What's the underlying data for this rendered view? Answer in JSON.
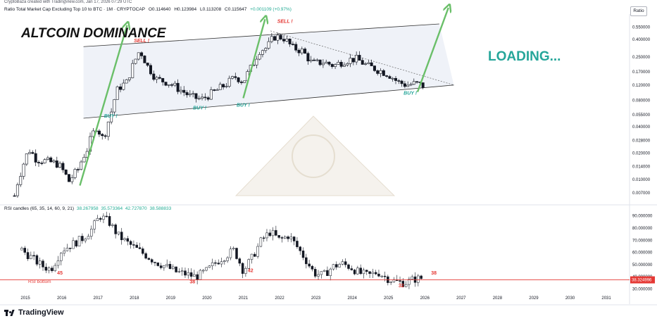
{
  "header": {
    "published_line": "CryptoBaza created with TradingView.com, Jan 17, 2026 07:29 UTC",
    "legend": {
      "title": "Ratio Total Market Cap Excluding Top 10 to BTC · 1M · CRYPTOCAP",
      "open": "O0.114640",
      "high": "H0.123984",
      "low": "L0.113208",
      "close": "C0.115647",
      "change": "+0.001109 (+0.97%)"
    },
    "scale_button": "Ratio"
  },
  "colors": {
    "up": "#ffffff",
    "down": "#131722",
    "arrow": "#6abf69",
    "channel_fill": "#e8ecf5",
    "annotation_red": "#e53935",
    "annotation_teal": "#26a69a",
    "rsi_bottom": "#e53935"
  },
  "chart_data": [
    {
      "type": "candlestick",
      "title": "ALTCOIN DOMINANCE",
      "ylabel": "",
      "y_scale": "log",
      "ylim": [
        0.0055,
        0.75
      ],
      "y_ticks": [
        "0.550000",
        "0.400000",
        "0.250000",
        "0.170000",
        "0.120000",
        "0.080000",
        "0.055000",
        "0.040000",
        "0.028000",
        "0.020000",
        "0.014000",
        "0.010000",
        "0.007000"
      ],
      "x_ticks": [
        "2015",
        "2016",
        "2017",
        "2018",
        "2019",
        "2020",
        "2021",
        "2022",
        "2023",
        "2024",
        "2025",
        "2026",
        "2027",
        "2028",
        "2029",
        "2030",
        "2031"
      ],
      "x_range_years": [
        2014.3,
        2031.6
      ],
      "price_path": [
        [
          2014.7,
          0.0065
        ],
        [
          2014.9,
          0.013
        ],
        [
          2015.1,
          0.022
        ],
        [
          2015.3,
          0.017
        ],
        [
          2015.6,
          0.016
        ],
        [
          2015.9,
          0.015
        ],
        [
          2016.2,
          0.0095
        ],
        [
          2016.45,
          0.013
        ],
        [
          2016.7,
          0.022
        ],
        [
          2016.95,
          0.04
        ],
        [
          2017.15,
          0.028
        ],
        [
          2017.35,
          0.055
        ],
        [
          2017.55,
          0.11
        ],
        [
          2017.8,
          0.13
        ],
        [
          2018.0,
          0.22
        ],
        [
          2018.15,
          0.3
        ],
        [
          2018.35,
          0.2
        ],
        [
          2018.6,
          0.14
        ],
        [
          2018.9,
          0.13
        ],
        [
          2019.2,
          0.11
        ],
        [
          2019.55,
          0.088
        ],
        [
          2019.85,
          0.082
        ],
        [
          2020.2,
          0.1
        ],
        [
          2020.5,
          0.12
        ],
        [
          2020.8,
          0.15
        ],
        [
          2021.0,
          0.13
        ],
        [
          2021.25,
          0.2
        ],
        [
          2021.45,
          0.3
        ],
        [
          2021.65,
          0.32
        ],
        [
          2021.85,
          0.43
        ],
        [
          2022.1,
          0.42
        ],
        [
          2022.35,
          0.32
        ],
        [
          2022.6,
          0.3
        ],
        [
          2022.9,
          0.21
        ],
        [
          2023.2,
          0.22
        ],
        [
          2023.5,
          0.2
        ],
        [
          2023.8,
          0.23
        ],
        [
          2024.1,
          0.24
        ],
        [
          2024.4,
          0.2
        ],
        [
          2024.7,
          0.18
        ],
        [
          2025.0,
          0.16
        ],
        [
          2025.25,
          0.13
        ],
        [
          2025.5,
          0.12
        ],
        [
          2025.75,
          0.125
        ],
        [
          2026.0,
          0.116
        ]
      ],
      "channel": {
        "upper": [
          [
            2016.6,
            0.33
          ],
          [
            2026.4,
            0.6
          ]
        ],
        "lower": [
          [
            2016.6,
            0.05
          ],
          [
            2026.8,
            0.12
          ]
        ],
        "resistance": [
          [
            2021.75,
            0.5
          ],
          [
            2026.8,
            0.12
          ]
        ]
      },
      "arrows": [
        [
          [
            2016.5,
            0.0085
          ],
          [
            2017.8,
            0.58
          ]
        ],
        [
          [
            2021.0,
            0.085
          ],
          [
            2021.6,
            0.68
          ]
        ],
        [
          [
            2025.8,
            0.1
          ],
          [
            2026.65,
            0.92
          ]
        ]
      ],
      "annotations": [
        {
          "text": "SELL !",
          "x": 2018.2,
          "y": 0.37,
          "color": "red"
        },
        {
          "text": "SELL !",
          "x": 2022.15,
          "y": 0.62,
          "color": "red"
        },
        {
          "text": "BUY !",
          "x": 2017.35,
          "y": 0.051,
          "color": "teal"
        },
        {
          "text": "BUY !",
          "x": 2019.8,
          "y": 0.063,
          "color": "teal"
        },
        {
          "text": "BUY !",
          "x": 2021.0,
          "y": 0.068,
          "color": "teal"
        },
        {
          "text": "BUY !",
          "x": 2025.6,
          "y": 0.093,
          "color": "teal"
        }
      ],
      "loading_label": "LOADING..."
    },
    {
      "type": "candlestick",
      "title": "RSI candles (65, 35, 14, 60, 9, 21)",
      "legend_values": [
        "38.267958",
        "35.573364",
        "42.727870",
        "38.588833"
      ],
      "ylim": [
        28,
        95
      ],
      "y_ticks": [
        "90.000000",
        "80.000000",
        "70.000000",
        "60.000000",
        "50.000000",
        "40.000000",
        "30.000000"
      ],
      "current_value_label": "38.324996",
      "rsi_path": [
        [
          2014.9,
          62
        ],
        [
          2015.2,
          55
        ],
        [
          2015.45,
          49
        ],
        [
          2015.7,
          46
        ],
        [
          2016.0,
          62
        ],
        [
          2016.25,
          66
        ],
        [
          2016.55,
          71
        ],
        [
          2016.8,
          78
        ],
        [
          2017.05,
          90
        ],
        [
          2017.3,
          85
        ],
        [
          2017.55,
          74
        ],
        [
          2017.8,
          68
        ],
        [
          2018.05,
          63
        ],
        [
          2018.3,
          58
        ],
        [
          2018.6,
          52
        ],
        [
          2018.9,
          48
        ],
        [
          2019.15,
          44
        ],
        [
          2019.45,
          42
        ],
        [
          2019.7,
          40
        ],
        [
          2020.0,
          45
        ],
        [
          2020.25,
          52
        ],
        [
          2020.5,
          57
        ],
        [
          2020.75,
          62
        ],
        [
          2021.0,
          45
        ],
        [
          2021.25,
          56
        ],
        [
          2021.5,
          70
        ],
        [
          2021.75,
          77
        ],
        [
          2022.0,
          70
        ],
        [
          2022.25,
          74
        ],
        [
          2022.45,
          66
        ],
        [
          2022.7,
          55
        ],
        [
          2022.95,
          43
        ],
        [
          2023.2,
          41
        ],
        [
          2023.45,
          48
        ],
        [
          2023.7,
          51
        ],
        [
          2023.95,
          48
        ],
        [
          2024.2,
          43
        ],
        [
          2024.45,
          41
        ],
        [
          2024.7,
          44
        ],
        [
          2024.95,
          39
        ],
        [
          2025.2,
          36
        ],
        [
          2025.45,
          35
        ],
        [
          2025.7,
          38
        ],
        [
          2025.95,
          39
        ]
      ],
      "rsi_bottom": {
        "value": 37.5,
        "label": "RSI bottom"
      },
      "annotations": [
        {
          "text": "45",
          "x": 2015.95,
          "y": 42,
          "color": "red"
        },
        {
          "text": "38",
          "x": 2019.6,
          "y": 34.5,
          "color": "red"
        },
        {
          "text": "42",
          "x": 2021.2,
          "y": 44,
          "color": "red"
        },
        {
          "text": "32",
          "x": 2025.35,
          "y": 31.5,
          "color": "red"
        },
        {
          "text": "38",
          "x": 2026.25,
          "y": 42,
          "color": "red"
        }
      ]
    }
  ],
  "footer": {
    "brand": "TradingView"
  }
}
